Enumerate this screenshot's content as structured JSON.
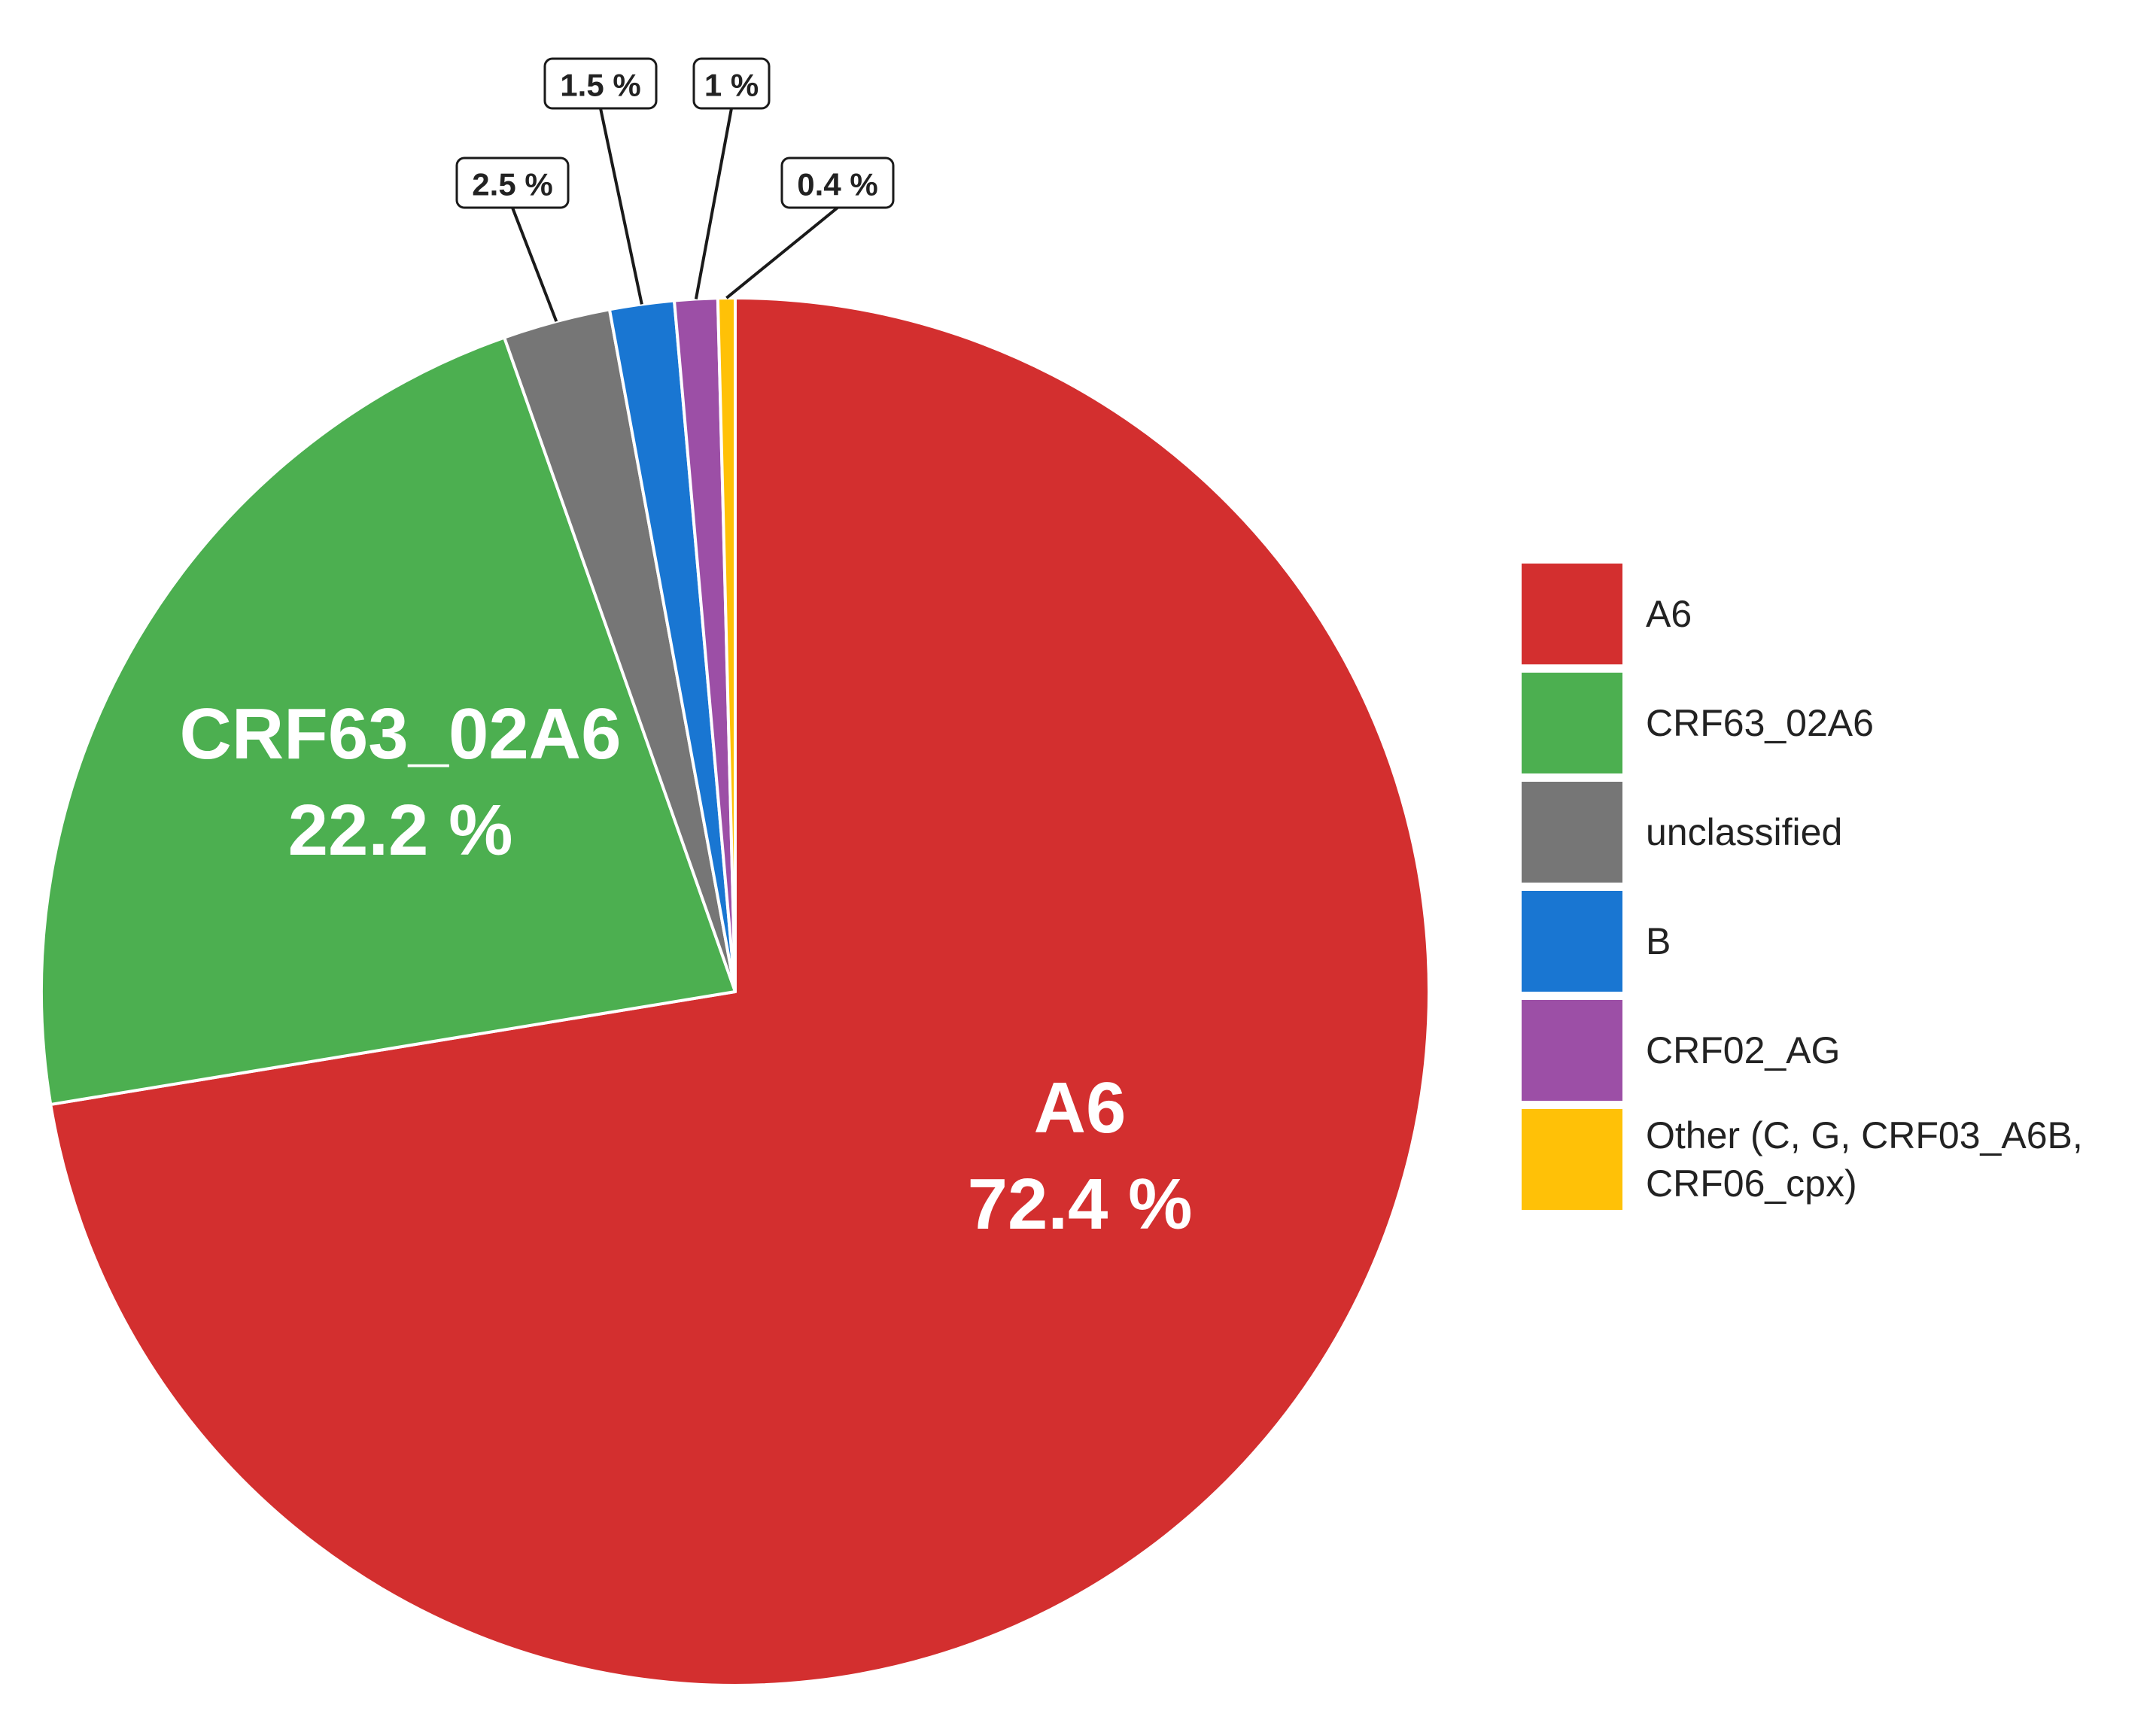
{
  "chart_data": {
    "type": "pie",
    "start_angle": "12 o'clock",
    "direction": "clockwise",
    "slices": [
      {
        "name": "A6",
        "value": 72.4,
        "label": "72.4 %",
        "inside_name": "A6",
        "label_style": "inside",
        "color": "#D32F2F"
      },
      {
        "name": "CRF63_02A6",
        "value": 22.2,
        "label": "22.2 %",
        "inside_name": "CRF63_02A6",
        "label_style": "inside",
        "color": "#4CAF50"
      },
      {
        "name": "unclassified",
        "value": 2.5,
        "label": "2.5 %",
        "label_style": "callout",
        "color": "#767676"
      },
      {
        "name": "B",
        "value": 1.5,
        "label": "1.5 %",
        "label_style": "callout",
        "color": "#1976D2"
      },
      {
        "name": "CRF02_AG",
        "value": 1.0,
        "label": "1 %",
        "label_style": "callout",
        "color": "#9C4FA6"
      },
      {
        "name": "Other (C, G, CRF03_A6B, CRF06_cpx)",
        "value": 0.4,
        "label": "0.4 %",
        "label_style": "callout",
        "color": "#FFC107"
      }
    ],
    "legend": {
      "placement": "right",
      "entries": [
        {
          "lines": [
            "A6"
          ],
          "color": "#D32F2F"
        },
        {
          "lines": [
            "CRF63_02A6"
          ],
          "color": "#4CAF50"
        },
        {
          "lines": [
            "unclassified"
          ],
          "color": "#767676"
        },
        {
          "lines": [
            "B"
          ],
          "color": "#1976D2"
        },
        {
          "lines": [
            "CRF02_AG"
          ],
          "color": "#9C4FA6"
        },
        {
          "lines": [
            "Other (C, G, CRF03_A6B,",
            "CRF06_cpx)"
          ],
          "color": "#FFC107"
        }
      ]
    }
  }
}
